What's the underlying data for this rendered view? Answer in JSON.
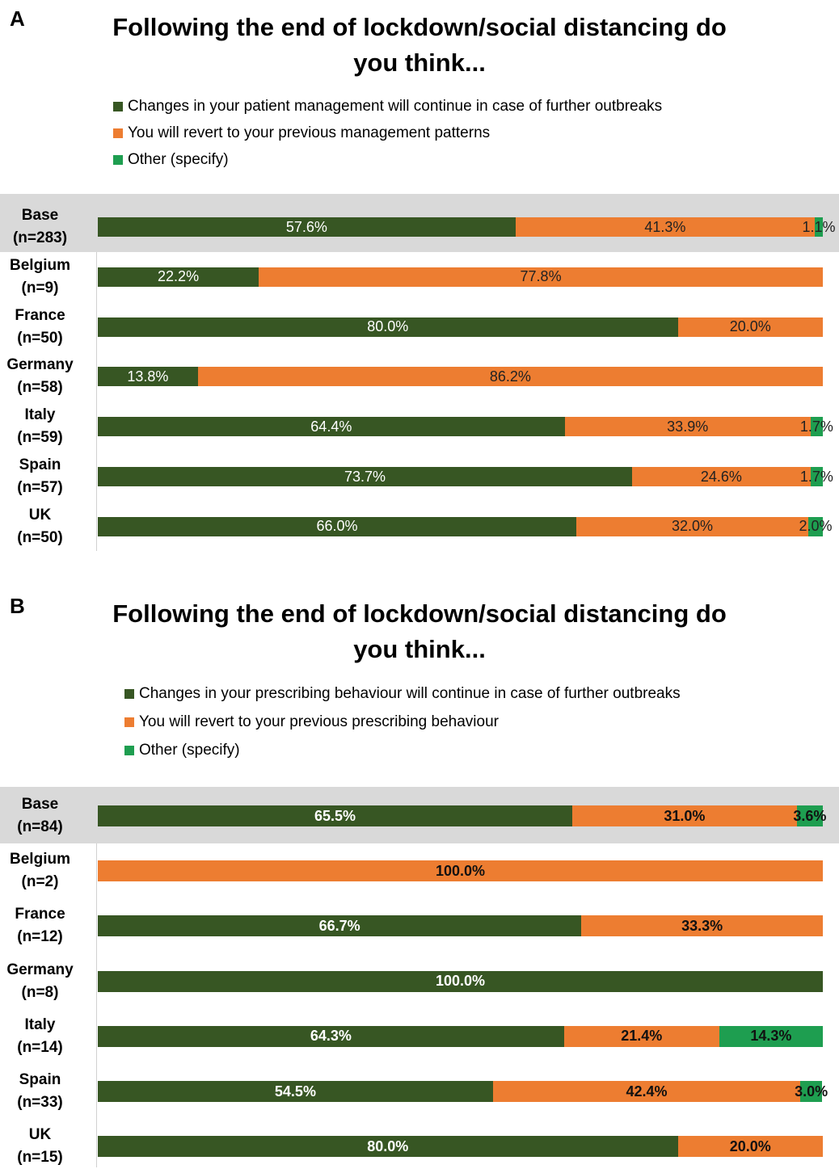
{
  "colors": {
    "continue": "#375623",
    "revert": "#ed7d31",
    "other": "#1e9e50"
  },
  "chart_data": [
    {
      "type": "bar",
      "orientation": "horizontal-stacked",
      "panel_label": "A",
      "title": "Following the end of lockdown/social distancing do you think...",
      "legend_placement": "top",
      "categories": [
        [
          "Base",
          "(n=283)"
        ],
        [
          "Belgium",
          "(n=9)"
        ],
        [
          "France",
          "(n=50)"
        ],
        [
          "Germany",
          "(n=58)"
        ],
        [
          "Italy",
          "(n=59)"
        ],
        [
          "Spain",
          "(n=57)"
        ],
        [
          "UK",
          "(n=50)"
        ]
      ],
      "series": [
        {
          "name": "Changes in your patient management will continue in case of further outbreaks",
          "values": [
            57.6,
            22.2,
            80.0,
            13.8,
            64.4,
            73.7,
            66.0
          ],
          "labels": [
            "57.6%",
            "22.2%",
            "80.0%",
            "13.8%",
            "64.4%",
            "73.7%",
            "66.0%"
          ]
        },
        {
          "name": "You will revert to your previous management patterns",
          "values": [
            41.3,
            77.8,
            20.0,
            86.2,
            33.9,
            24.6,
            32.0
          ],
          "labels": [
            "41.3%",
            "77.8%",
            "20.0%",
            "86.2%",
            "33.9%",
            "24.6%",
            "32.0%"
          ]
        },
        {
          "name": "Other (specify)",
          "values": [
            1.1,
            0,
            0,
            0,
            1.7,
            1.7,
            2.0
          ],
          "labels": [
            "1.1%",
            "",
            "",
            "",
            "1.7%",
            "1.7%",
            "2.0%"
          ]
        }
      ],
      "xlim": [
        0,
        100
      ]
    },
    {
      "type": "bar",
      "orientation": "horizontal-stacked",
      "panel_label": "B",
      "title": "Following the end of lockdown/social distancing do you think...",
      "legend_placement": "top",
      "categories": [
        [
          "Base",
          "(n=84)"
        ],
        [
          "Belgium",
          "(n=2)"
        ],
        [
          "France",
          "(n=12)"
        ],
        [
          "Germany",
          "(n=8)"
        ],
        [
          "Italy",
          "(n=14)"
        ],
        [
          "Spain",
          "(n=33)"
        ],
        [
          "UK",
          "(n=15)"
        ]
      ],
      "series": [
        {
          "name": "Changes in your prescribing behaviour will continue in case of further outbreaks",
          "values": [
            65.5,
            0,
            66.7,
            100.0,
            64.3,
            54.5,
            80.0
          ],
          "labels": [
            "65.5%",
            "",
            "66.7%",
            "100.0%",
            "64.3%",
            "54.5%",
            "80.0%"
          ]
        },
        {
          "name": "You will revert to your previous prescribing behaviour",
          "values": [
            31.0,
            100.0,
            33.3,
            0,
            21.4,
            42.4,
            20.0
          ],
          "labels": [
            "31.0%",
            "100.0%",
            "33.3%",
            "",
            "21.4%",
            "42.4%",
            "20.0%"
          ]
        },
        {
          "name": "Other (specify)",
          "values": [
            3.6,
            0,
            0,
            0,
            14.3,
            3.0,
            0
          ],
          "labels": [
            "3.6%",
            "",
            "",
            "",
            "14.3%",
            "3.0%",
            ""
          ]
        }
      ],
      "xlim": [
        0,
        100
      ]
    }
  ]
}
